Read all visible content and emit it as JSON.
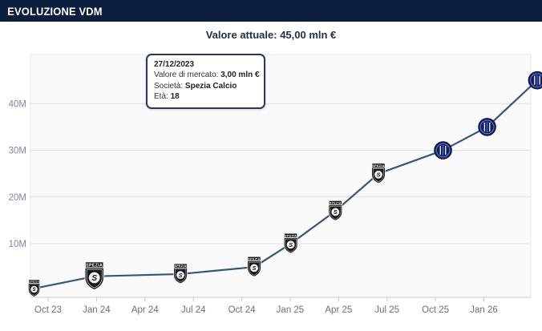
{
  "header": {
    "title": "EVOLUZIONE VDM"
  },
  "current_value": {
    "label": "Valore attuale:",
    "value": "45,00 mln €"
  },
  "tooltip": {
    "date": "27/12/2023",
    "market_value_label": "Valore di mercato:",
    "market_value": "3,00 mln €",
    "club_label": "Società:",
    "club": "Spezia Calcio",
    "age_label": "Età:",
    "age": "18"
  },
  "chart_data": {
    "type": "line",
    "title": "Evoluzione VDM",
    "ylabel": "Valore di mercato",
    "unit": "mln €",
    "ylim": [
      0,
      47
    ],
    "grid": true,
    "y_ticks": [
      {
        "value": 10,
        "label": "10M"
      },
      {
        "value": 20,
        "label": "20M"
      },
      {
        "value": 30,
        "label": "30M"
      },
      {
        "value": 40,
        "label": "40M"
      }
    ],
    "x_ticks": [
      "Oct 23",
      "Jan 24",
      "Apr 24",
      "Jul 24",
      "Oct 24",
      "Jan 25",
      "Apr 25",
      "Jul 25",
      "Oct 25",
      "Jan 26"
    ],
    "series": [
      {
        "name": "Valore di mercato",
        "points": [
          {
            "date": "2023-09-05",
            "value_mln": 0.4,
            "club": "Spezia Calcio",
            "marker": "spezia-crest",
            "size": "small"
          },
          {
            "date": "2023-12-27",
            "value_mln": 3.0,
            "club": "Spezia Calcio",
            "marker": "spezia-crest",
            "size": "large"
          },
          {
            "date": "2024-06-07",
            "value_mln": 3.5,
            "club": "Spezia Calcio",
            "marker": "spezia-crest",
            "size": "medium"
          },
          {
            "date": "2024-10-24",
            "value_mln": 5.0,
            "club": "Spezia Calcio",
            "marker": "spezia-crest",
            "size": "medium"
          },
          {
            "date": "2025-01-02",
            "value_mln": 10.0,
            "club": "Spezia Calcio",
            "marker": "spezia-crest",
            "size": "medium"
          },
          {
            "date": "2025-03-25",
            "value_mln": 17.0,
            "club": "Spezia Calcio",
            "marker": "spezia-crest",
            "size": "medium"
          },
          {
            "date": "2025-06-15",
            "value_mln": 25.0,
            "club": "Spezia Calcio",
            "marker": "spezia-crest",
            "size": "medium"
          },
          {
            "date": "2025-10-15",
            "value_mln": 30.0,
            "club": "Inter",
            "marker": "inter-crest",
            "size": "medium"
          },
          {
            "date": "2026-01-07",
            "value_mln": 35.0,
            "club": "Inter",
            "marker": "inter-crest",
            "size": "medium"
          },
          {
            "date": "2026-04-10",
            "value_mln": 45.0,
            "club": "Inter",
            "marker": "inter-crest",
            "size": "medium"
          }
        ]
      }
    ],
    "colors": {
      "line": "#35567c",
      "grid": "#dedede",
      "plot_bg": "#fafafa",
      "plot_border": "#e8e8e8",
      "axis_line": "#c9c9c9",
      "x_label": "#6f6f6f",
      "y_label": "#7c8799",
      "header_bg": "#0b1e3d",
      "tooltip_border": "#24395c",
      "inter_navy": "#151c4e",
      "inter_blue": "#4a66cf",
      "spezia_black": "#161616"
    },
    "legend": "none"
  }
}
